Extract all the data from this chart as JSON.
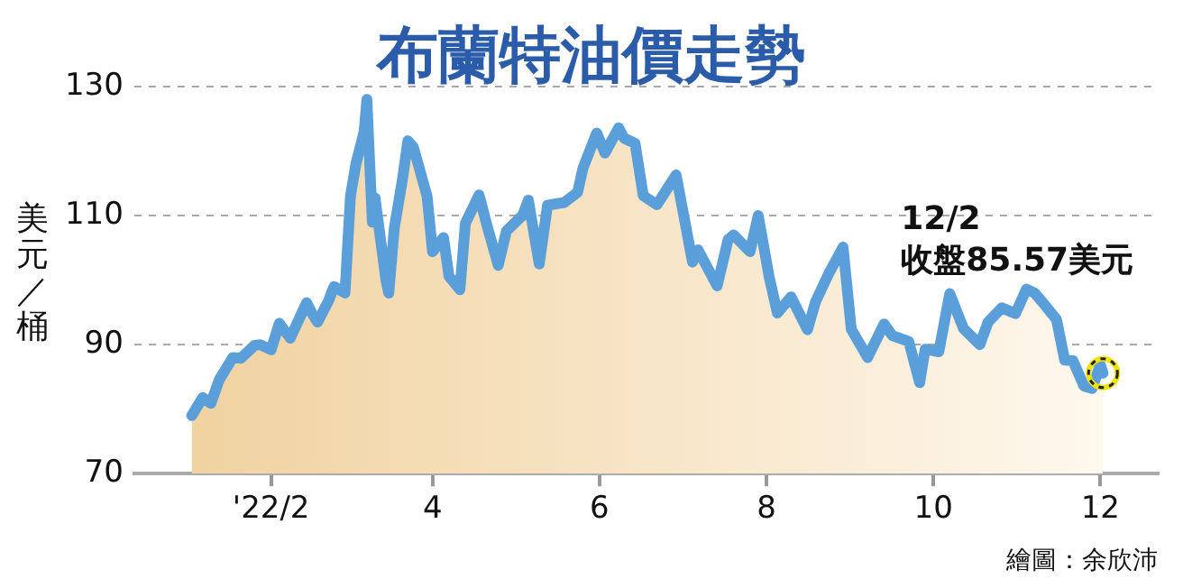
{
  "chart_data": {
    "type": "area",
    "title": "布蘭特油價走勢",
    "ylabel": "美元／桶",
    "x": [
      "2022-01-03",
      "2022-01-07",
      "2022-01-10",
      "2022-01-13",
      "2022-01-18",
      "2022-01-21",
      "2022-01-26",
      "2022-01-28",
      "2022-02-01",
      "2022-02-04",
      "2022-02-08",
      "2022-02-14",
      "2022-02-16",
      "2022-02-18",
      "2022-02-22",
      "2022-02-24",
      "2022-02-28",
      "2022-03-02",
      "2022-03-04",
      "2022-03-07",
      "2022-03-08",
      "2022-03-10",
      "2022-03-11",
      "2022-03-15",
      "2022-03-16",
      "2022-03-18",
      "2022-03-21",
      "2022-03-23",
      "2022-03-25",
      "2022-03-30",
      "2022-04-01",
      "2022-04-05",
      "2022-04-07",
      "2022-04-11",
      "2022-04-13",
      "2022-04-18",
      "2022-04-21",
      "2022-04-25",
      "2022-04-28",
      "2022-05-04",
      "2022-05-06",
      "2022-05-10",
      "2022-05-13",
      "2022-05-17",
      "2022-05-19",
      "2022-05-24",
      "2022-05-26",
      "2022-05-31",
      "2022-06-03",
      "2022-06-08",
      "2022-06-10",
      "2022-06-14",
      "2022-06-17",
      "2022-06-22",
      "2022-06-24",
      "2022-06-29",
      "2022-07-05",
      "2022-07-07",
      "2022-07-14",
      "2022-07-18",
      "2022-07-20",
      "2022-07-26",
      "2022-07-29",
      "2022-08-02",
      "2022-08-05",
      "2022-08-10",
      "2022-08-16",
      "2022-08-19",
      "2022-08-24",
      "2022-08-29",
      "2022-09-01",
      "2022-09-07",
      "2022-09-13",
      "2022-09-16",
      "2022-09-22",
      "2022-09-26",
      "2022-09-28",
      "2022-10-03",
      "2022-10-07",
      "2022-10-12",
      "2022-10-18",
      "2022-10-21",
      "2022-10-26",
      "2022-10-31",
      "2022-11-04",
      "2022-11-07",
      "2022-11-11",
      "2022-11-15",
      "2022-11-18",
      "2022-11-21",
      "2022-11-25",
      "2022-11-28",
      "2022-12-01",
      "2022-12-02"
    ],
    "series": [
      {
        "color": "#5a9fd9",
        "values": [
          79,
          81.8,
          80.9,
          84.5,
          88,
          87.9,
          89.9,
          90,
          89.2,
          93.3,
          91,
          96.5,
          94.8,
          93.5,
          96.8,
          99,
          98,
          113,
          118,
          123,
          128,
          109,
          112.7,
          99.9,
          98,
          108,
          115.6,
          121.6,
          120.6,
          113,
          104.4,
          106.6,
          100.6,
          98.5,
          108.8,
          113.2,
          108.3,
          102.3,
          107.6,
          110.1,
          112.4,
          102.5,
          111.6,
          111.9,
          112,
          113.6,
          117.4,
          122.8,
          119.7,
          123.6,
          122,
          121.2,
          113.1,
          111.7,
          113,
          116.3,
          102.8,
          104.7,
          99.1,
          106.3,
          107,
          104.4,
          110,
          100.5,
          94.9,
          97.4,
          92.3,
          96.7,
          101.2,
          105.1,
          92.4,
          88,
          93.2,
          91.4,
          90.5,
          84.1,
          89.3,
          88.9,
          97.9,
          92.5,
          90,
          93.5,
          95.7,
          94.8,
          98.6,
          98,
          96,
          93.9,
          87.6,
          87.5,
          83.6,
          83.2,
          86.9,
          85.57
        ]
      }
    ],
    "xlim": [
      "2021-12-13",
      "2022-12-22"
    ],
    "xticks": [
      {
        "value": "2022-02-01",
        "label": "'22/2"
      },
      {
        "value": "2022-04-01",
        "label": "4"
      },
      {
        "value": "2022-06-01",
        "label": "6"
      },
      {
        "value": "2022-08-01",
        "label": "8"
      },
      {
        "value": "2022-10-01",
        "label": "10"
      },
      {
        "value": "2022-12-01",
        "label": "12"
      }
    ],
    "ylim": [
      70,
      130
    ],
    "yticks": [
      70,
      90,
      110,
      130
    ],
    "grid": "y",
    "marker": "none",
    "annotations": [
      {
        "text": "12/2\n收盤85.57美元",
        "x": "2022-12-02",
        "y": 85.57
      },
      "繪圖：余欣沛"
    ]
  }
}
